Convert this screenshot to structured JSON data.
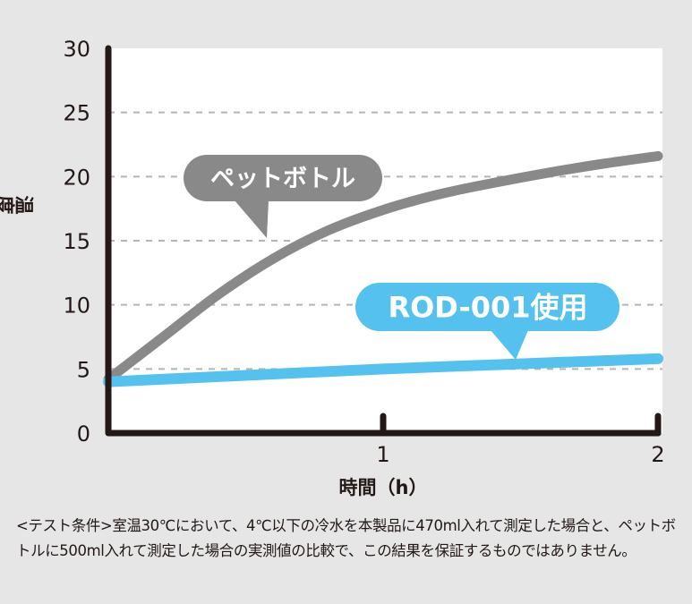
{
  "chart_data": {
    "type": "line",
    "title": "",
    "xlabel": "時間（h）",
    "ylabel": "温度（℃）",
    "xlim": [
      0,
      2
    ],
    "ylim": [
      0,
      30
    ],
    "xticks": [
      "1",
      "2"
    ],
    "yticks": [
      "0",
      "5",
      "10",
      "15",
      "20",
      "25",
      "30"
    ],
    "grid": "horizontal dashed",
    "series": [
      {
        "name": "ペットボトル",
        "color": "#898989",
        "x": [
          0,
          0.2,
          0.4,
          0.6,
          0.8,
          1.0,
          1.2,
          1.4,
          1.6,
          1.8,
          2.0
        ],
        "y": [
          4.2,
          7.5,
          10.8,
          13.6,
          15.8,
          17.4,
          18.6,
          19.5,
          20.3,
          21.0,
          21.6
        ]
      },
      {
        "name": "ROD-001使用",
        "color": "#55c1ef",
        "x": [
          0,
          0.5,
          1.0,
          1.5,
          2.0
        ],
        "y": [
          4.0,
          4.5,
          5.0,
          5.4,
          5.8
        ]
      }
    ]
  },
  "caption": "<テスト条件>室温30℃において、4℃以下の冷水を本製品に470ml入れて測定した場合と、ペットボトルに500ml入れて測定した場合の実測値の比較で、この結果を保証するものではありません。"
}
